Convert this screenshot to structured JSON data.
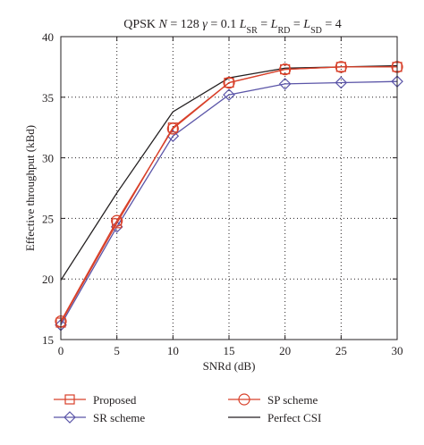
{
  "chart_data": {
    "type": "line",
    "title_parts": [
      {
        "text": "QPSK ",
        "italic": false
      },
      {
        "text": "N",
        "italic": true
      },
      {
        "text": " = 128 ",
        "italic": false
      },
      {
        "text": "γ",
        "italic": true
      },
      {
        "text": " = 0.1 ",
        "italic": false
      },
      {
        "text": "L",
        "italic": true
      },
      {
        "text": "SR",
        "italic": false,
        "sub": true
      },
      {
        "text": " = ",
        "italic": false
      },
      {
        "text": "L",
        "italic": true
      },
      {
        "text": "RD",
        "italic": false,
        "sub": true
      },
      {
        "text": " = ",
        "italic": false
      },
      {
        "text": "L",
        "italic": true
      },
      {
        "text": "SD",
        "italic": false,
        "sub": true
      },
      {
        "text": " = 4",
        "italic": false
      }
    ],
    "xlabel": "SNRd (dB)",
    "ylabel": "Effective throughput (kBd)",
    "xlim": [
      0,
      30
    ],
    "ylim": [
      15,
      40
    ],
    "xticks": [
      0,
      5,
      10,
      15,
      20,
      25,
      30
    ],
    "yticks": [
      15,
      20,
      25,
      30,
      35,
      40
    ],
    "grid": true,
    "legend_position": "bottom",
    "x": [
      0,
      5,
      10,
      15,
      20,
      25,
      30
    ],
    "series": [
      {
        "name": "Proposed",
        "values": [
          16.4,
          24.6,
          32.5,
          36.2,
          37.3,
          37.5,
          37.5
        ],
        "color": "#d8402a",
        "marker": "square"
      },
      {
        "name": "SP scheme",
        "values": [
          16.5,
          24.8,
          32.4,
          36.2,
          37.3,
          37.5,
          37.5
        ],
        "color": "#d8402a",
        "marker": "circle"
      },
      {
        "name": "SR scheme",
        "values": [
          16.2,
          24.3,
          31.8,
          35.2,
          36.1,
          36.2,
          36.3
        ],
        "color": "#5b55a8",
        "marker": "diamond"
      },
      {
        "name": "Perfect CSI",
        "values": [
          19.9,
          27.1,
          33.8,
          36.6,
          37.4,
          37.5,
          37.6
        ],
        "color": "#231f20",
        "marker": "none"
      }
    ],
    "legend": [
      {
        "name": "Proposed",
        "marker": "square",
        "color": "#d8402a"
      },
      {
        "name": "SP scheme",
        "marker": "circle",
        "color": "#d8402a"
      },
      {
        "name": "SR scheme",
        "marker": "diamond",
        "color": "#5b55a8"
      },
      {
        "name": "Perfect CSI",
        "marker": "none",
        "color": "#231f20"
      }
    ]
  }
}
